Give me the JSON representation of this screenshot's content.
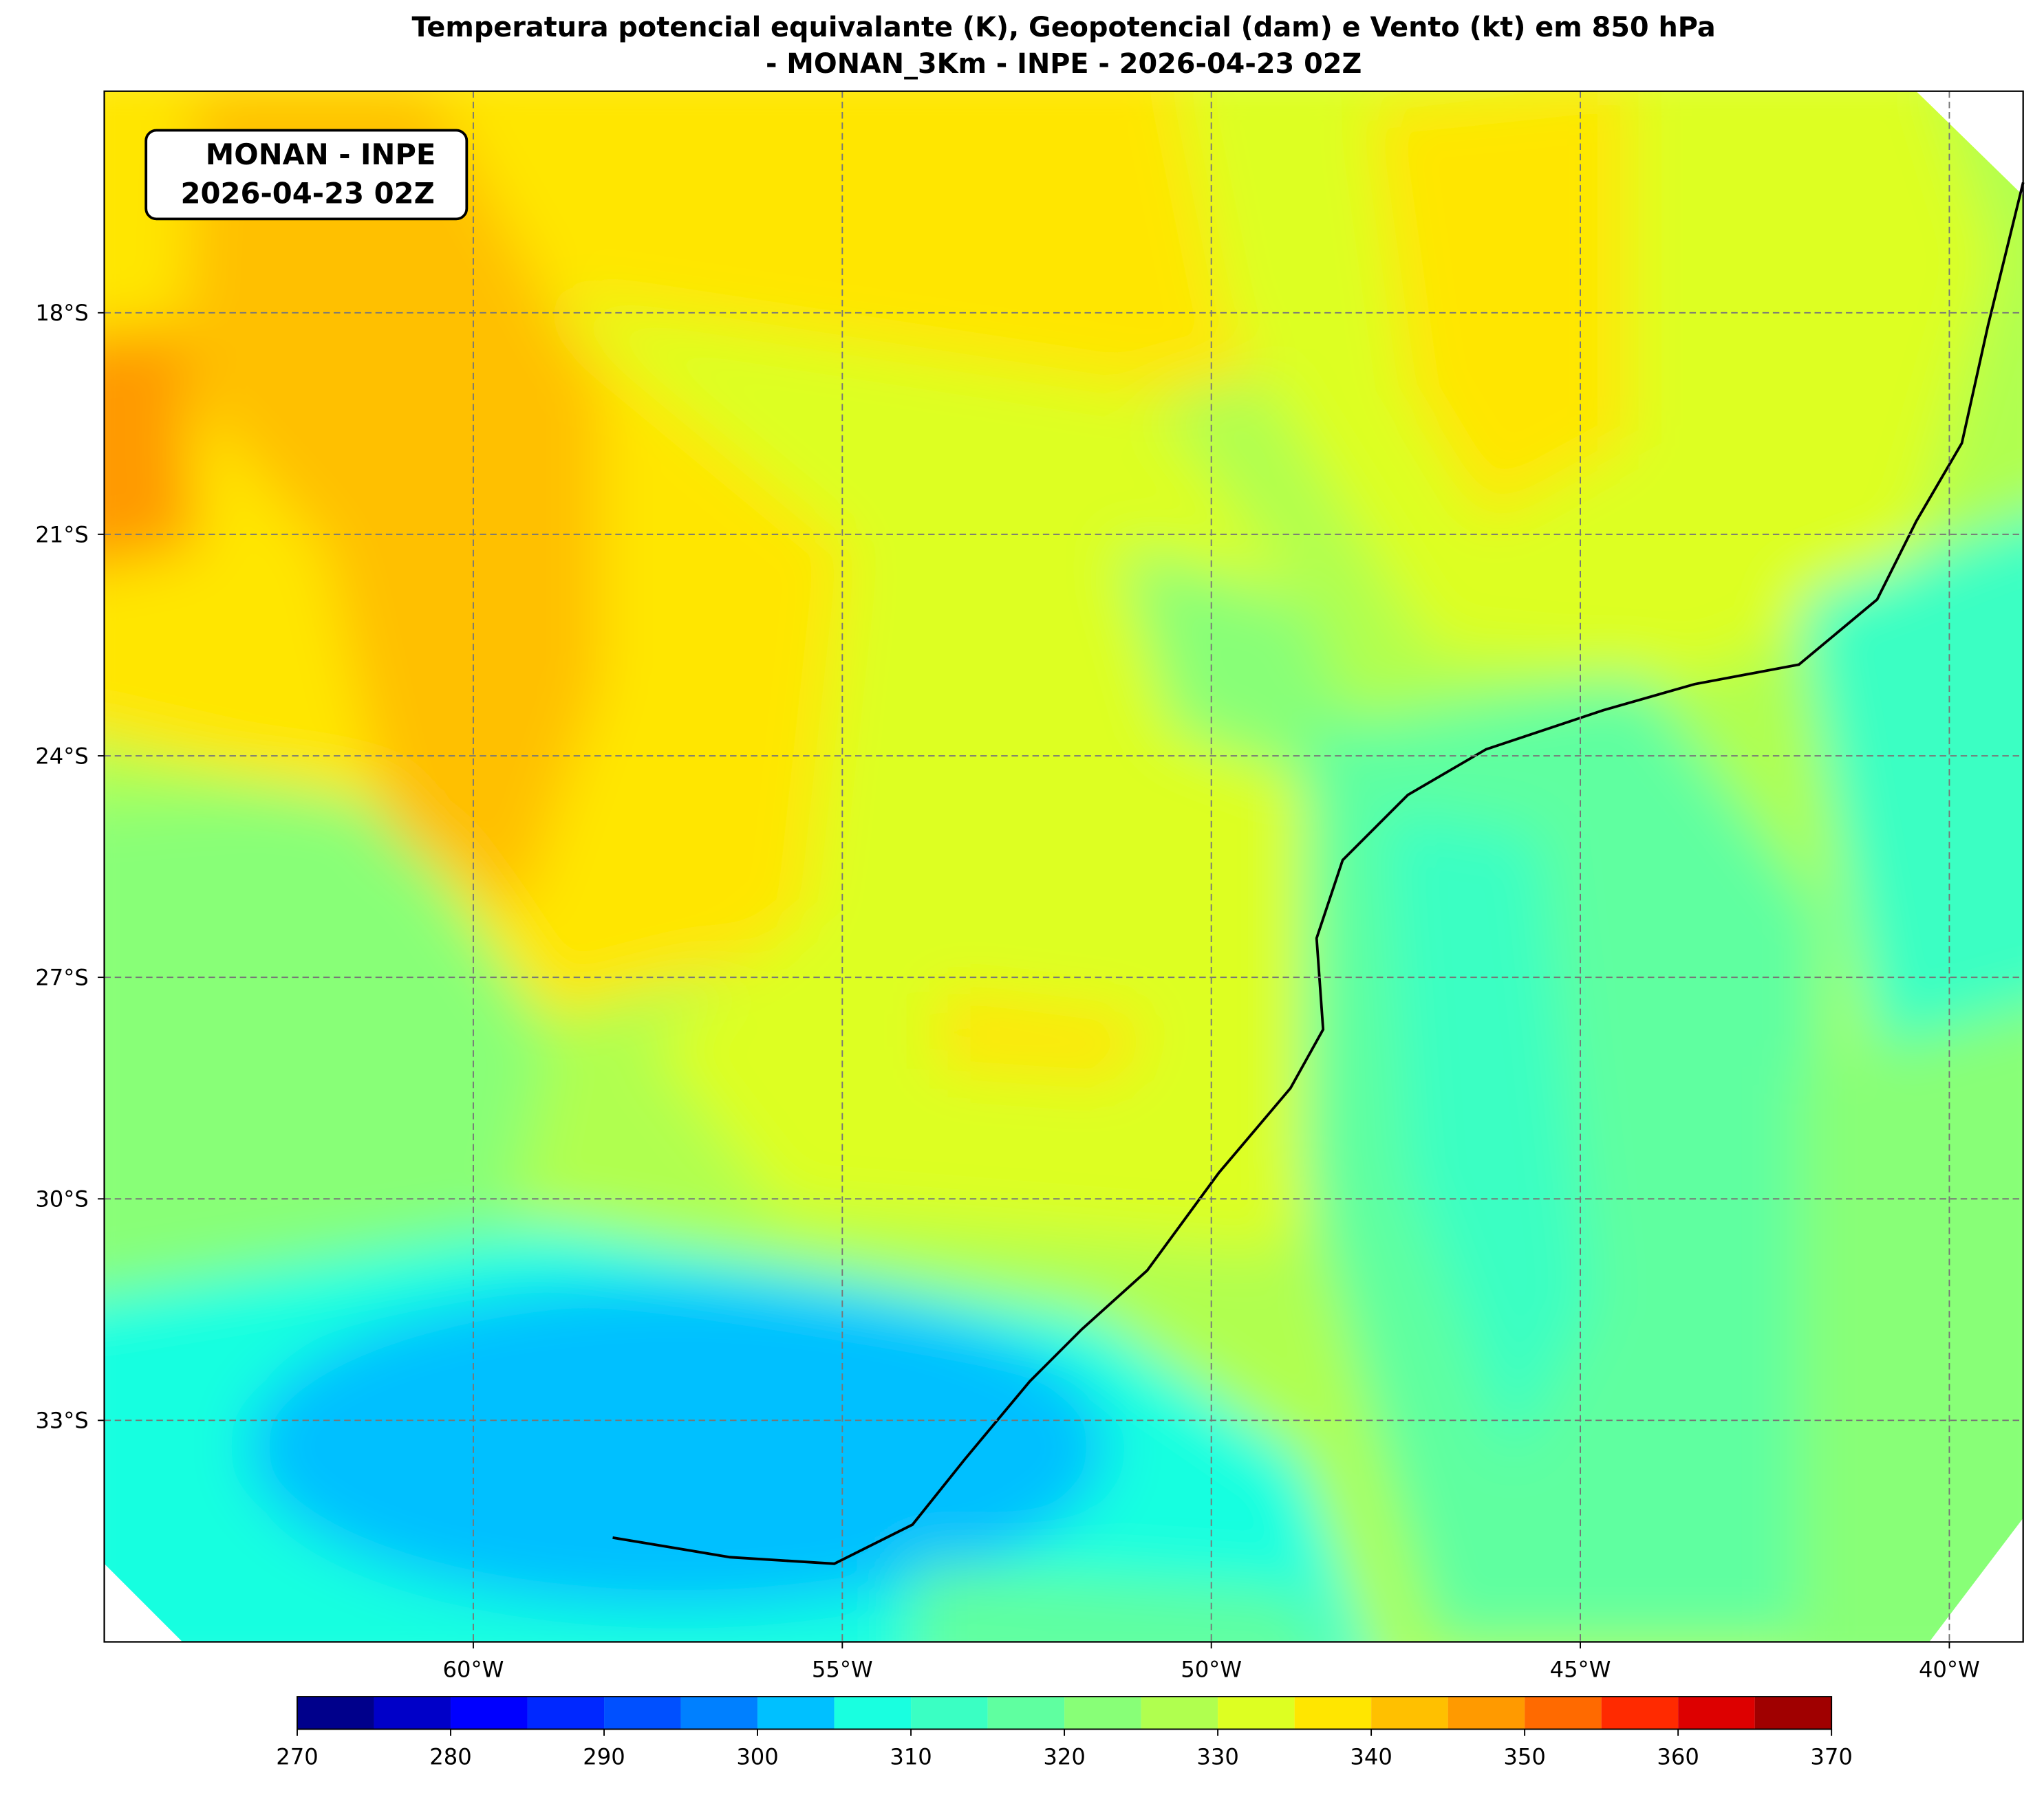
{
  "title": [
    "Temperatura potencial equivalante (K), Geopotencial (dam) e Vento (kt) em 850 hPa",
    "- MONAN_3Km - INPE - 2026-04-23 02Z"
  ],
  "info_box": [
    "MONAN - INPE",
    "2026-04-23 02Z"
  ],
  "map": {
    "xlim": [
      -65,
      -39
    ],
    "ylim": [
      -36,
      -15
    ],
    "grid": true,
    "xticks": [
      {
        "value": -60,
        "label": "60°W"
      },
      {
        "value": -55,
        "label": "55°W"
      },
      {
        "value": -50,
        "label": "50°W"
      },
      {
        "value": -45,
        "label": "45°W"
      },
      {
        "value": -40,
        "label": "40°W"
      }
    ],
    "yticks": [
      {
        "value": -18,
        "label": "18°S"
      },
      {
        "value": -21,
        "label": "21°S"
      },
      {
        "value": -24,
        "label": "24°S"
      },
      {
        "value": -27,
        "label": "27°S"
      },
      {
        "value": -30,
        "label": "30°S"
      },
      {
        "value": -33,
        "label": "33°S"
      }
    ]
  },
  "colorbar": {
    "levels": [
      270,
      275,
      280,
      285,
      290,
      295,
      300,
      305,
      310,
      315,
      320,
      325,
      330,
      335,
      340,
      345,
      350,
      355,
      360,
      365,
      370
    ],
    "colors": [
      "#00008b",
      "#0000c8",
      "#0000ff",
      "#0028ff",
      "#0050ff",
      "#0080ff",
      "#00c0ff",
      "#19ffe0",
      "#3affc3",
      "#5fffa0",
      "#88ff77",
      "#b0ff4f",
      "#ddff22",
      "#ffe600",
      "#ffc000",
      "#ff9a00",
      "#ff6a00",
      "#ff2a00",
      "#dd0000",
      "#a00000"
    ],
    "ticks": [
      270,
      280,
      290,
      300,
      310,
      320,
      330,
      340,
      350,
      360,
      370
    ]
  }
}
